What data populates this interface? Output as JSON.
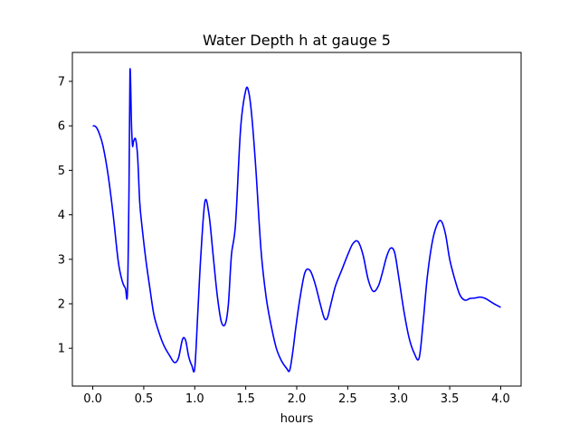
{
  "chart_data": {
    "type": "line",
    "title": "Water Depth h at gauge 5",
    "xlabel": "hours",
    "ylabel": "",
    "xlim": [
      -0.2,
      4.2
    ],
    "ylim": [
      0.15,
      7.65
    ],
    "xticks": [
      0.0,
      0.5,
      1.0,
      1.5,
      2.0,
      2.5,
      3.0,
      3.5,
      4.0
    ],
    "xtick_labels": [
      "0.0",
      "0.5",
      "1.0",
      "1.5",
      "2.0",
      "2.5",
      "3.0",
      "3.5",
      "4.0"
    ],
    "yticks": [
      1,
      2,
      3,
      4,
      5,
      6,
      7
    ],
    "ytick_labels": [
      "1",
      "2",
      "3",
      "4",
      "5",
      "6",
      "7"
    ],
    "grid": false,
    "legend": "none",
    "series": [
      {
        "color": "#0000ff",
        "x": [
          0.0,
          0.03,
          0.06,
          0.1,
          0.15,
          0.2,
          0.25,
          0.29,
          0.32,
          0.34,
          0.355,
          0.365,
          0.38,
          0.39,
          0.4,
          0.42,
          0.44,
          0.46,
          0.48,
          0.52,
          0.56,
          0.6,
          0.65,
          0.7,
          0.75,
          0.8,
          0.84,
          0.88,
          0.91,
          0.94,
          0.97,
          1.0,
          1.03,
          1.06,
          1.1,
          1.14,
          1.18,
          1.22,
          1.26,
          1.3,
          1.33,
          1.36,
          1.4,
          1.45,
          1.5,
          1.53,
          1.56,
          1.6,
          1.65,
          1.7,
          1.75,
          1.8,
          1.85,
          1.9,
          1.93,
          1.96,
          1.99,
          2.03,
          2.08,
          2.13,
          2.18,
          2.23,
          2.27,
          2.3,
          2.33,
          2.38,
          2.44,
          2.5,
          2.55,
          2.6,
          2.65,
          2.7,
          2.75,
          2.8,
          2.84,
          2.88,
          2.92,
          2.96,
          3.0,
          3.05,
          3.1,
          3.15,
          3.2,
          3.24,
          3.28,
          3.33,
          3.38,
          3.42,
          3.46,
          3.5,
          3.55,
          3.6,
          3.65,
          3.7,
          3.75,
          3.8,
          3.85,
          3.9,
          3.95,
          4.0
        ],
        "y": [
          6.0,
          5.98,
          5.85,
          5.55,
          4.9,
          4.0,
          2.95,
          2.5,
          2.35,
          2.25,
          4.5,
          7.25,
          6.0,
          5.55,
          5.65,
          5.7,
          5.3,
          4.3,
          3.8,
          3.0,
          2.35,
          1.75,
          1.35,
          1.05,
          0.85,
          0.68,
          0.78,
          1.2,
          1.18,
          0.82,
          0.62,
          0.55,
          1.8,
          3.1,
          4.3,
          4.0,
          3.1,
          2.2,
          1.6,
          1.55,
          2.0,
          3.1,
          3.8,
          5.95,
          6.8,
          6.75,
          6.2,
          5.0,
          3.2,
          2.15,
          1.5,
          1.0,
          0.72,
          0.55,
          0.5,
          0.9,
          1.45,
          2.1,
          2.7,
          2.75,
          2.45,
          2.0,
          1.68,
          1.68,
          1.95,
          2.4,
          2.75,
          3.1,
          3.35,
          3.4,
          3.1,
          2.55,
          2.28,
          2.4,
          2.7,
          3.05,
          3.25,
          3.15,
          2.6,
          1.85,
          1.25,
          0.9,
          0.78,
          1.6,
          2.6,
          3.4,
          3.8,
          3.85,
          3.55,
          3.0,
          2.55,
          2.2,
          2.08,
          2.12,
          2.13,
          2.15,
          2.12,
          2.05,
          1.98,
          1.92
        ]
      }
    ]
  }
}
